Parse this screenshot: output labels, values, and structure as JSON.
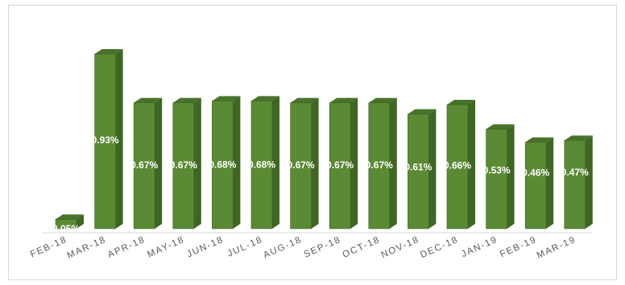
{
  "chart_data": {
    "type": "bar",
    "title": "",
    "xlabel": "",
    "ylabel": "",
    "categories": [
      "FEB-18",
      "MAR-18",
      "APR-18",
      "MAY-18",
      "JUN-18",
      "JUL-18",
      "AUG-18",
      "SEP-18",
      "OCT-18",
      "NOV-18",
      "DEC-18",
      "JAN-19",
      "FEB-19",
      "MAR-19"
    ],
    "values": [
      0.05,
      0.93,
      0.67,
      0.67,
      0.68,
      0.68,
      0.67,
      0.67,
      0.67,
      0.61,
      0.66,
      0.53,
      0.46,
      0.47
    ],
    "data_labels": [
      "0.05%",
      "0.93%",
      "0.67%",
      "0.67%",
      "0.68%",
      "0.68%",
      "0.67%",
      "0.67%",
      "0.67%",
      "0.61%",
      "0.66%",
      "0.53%",
      "0.46%",
      "0.47%"
    ],
    "unit": "%",
    "ylim": [
      0,
      1.0
    ],
    "grid": false,
    "legend": "none",
    "style": "3d-column",
    "colors": {
      "bar_front": "#5b8a34",
      "bar_side": "#3f6622",
      "bar_top": "#47732a",
      "bar_edge": "#3a5c1f",
      "axis_line": "#d9d9d9",
      "frame": "#d9d9d9"
    }
  }
}
